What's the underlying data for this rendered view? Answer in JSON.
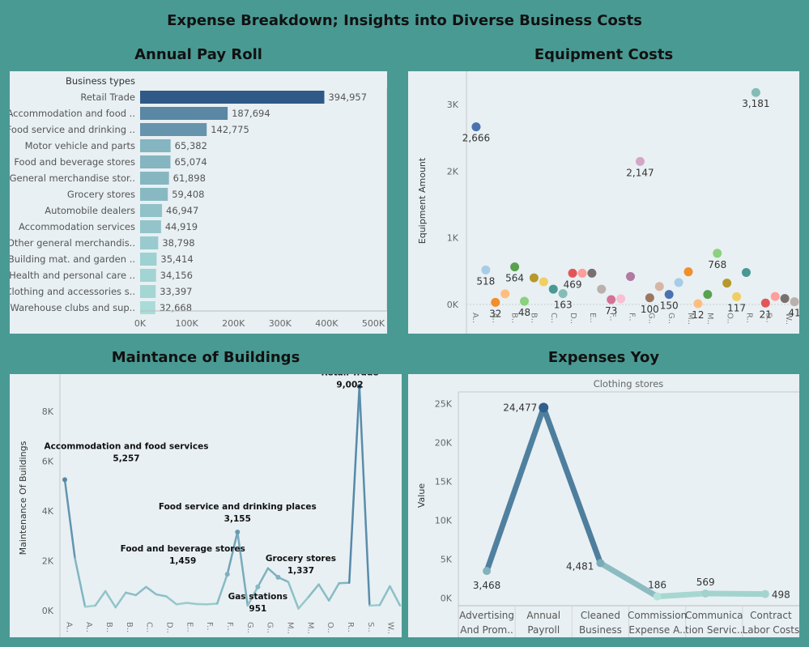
{
  "dashboard": {
    "title": "Expense Breakdown; Insights into Diverse Business Costs"
  },
  "chart_data": [
    {
      "id": "payroll",
      "type": "bar",
      "title": "Annual Pay Roll",
      "category_header": "Business types",
      "categories": [
        "Retail Trade",
        "Accommodation and food ..",
        "Food service and drinking ..",
        "Motor vehicle and parts",
        "Food and beverage stores",
        "General merchandise stor..",
        "Grocery stores",
        "Automobile dealers",
        "Accommodation services",
        "Other general merchandis..",
        "Building mat. and garden ..",
        "Health and personal care ..",
        "Clothing and accessories s..",
        "Warehouse clubs and sup.."
      ],
      "values": [
        394957,
        187694,
        142775,
        65382,
        65074,
        61898,
        59408,
        46947,
        44919,
        38798,
        35414,
        34156,
        33397,
        32668
      ],
      "value_labels": [
        "394,957",
        "187,694",
        "142,775",
        "65,382",
        "65,074",
        "61,898",
        "59,408",
        "46,947",
        "44,919",
        "38,798",
        "35,414",
        "34,156",
        "33,397",
        "32,668"
      ],
      "xlim": [
        0,
        500000
      ],
      "xticks": [
        "0K",
        "100K",
        "200K",
        "300K",
        "400K",
        "500K"
      ],
      "colors": {
        "dark": "#2f5a88",
        "light": "#a9dcd8"
      }
    },
    {
      "id": "equipment",
      "type": "scatter",
      "title": "Equipment Costs",
      "ylabel": "Equipment Amount",
      "ylim": [
        0,
        3500
      ],
      "yticks": [
        "0K",
        "1K",
        "2K",
        "3K"
      ],
      "x_labels": [
        "A..",
        "A..",
        "B..",
        "B..",
        "C..",
        "D..",
        "E..",
        "F..",
        "F..",
        "G..",
        "G..",
        "M..",
        "M..",
        "O..",
        "R..",
        "S..",
        "W.."
      ],
      "points": [
        {
          "v": 2666,
          "c": "#4a72b0",
          "label": "2,666"
        },
        {
          "v": 518,
          "c": "#a8cce8",
          "label": "518"
        },
        {
          "v": 32,
          "c": "#f28e2b",
          "label": "32"
        },
        {
          "v": 160,
          "c": "#ffbe7d",
          "label": ""
        },
        {
          "v": 564,
          "c": "#59a14f",
          "label": "564"
        },
        {
          "v": 48,
          "c": "#8cd17d",
          "label": "48"
        },
        {
          "v": 400,
          "c": "#b6992d",
          "label": ""
        },
        {
          "v": 340,
          "c": "#f1ce63",
          "label": ""
        },
        {
          "v": 230,
          "c": "#499894",
          "label": ""
        },
        {
          "v": 163,
          "c": "#86bcb6",
          "label": "163"
        },
        {
          "v": 469,
          "c": "#e15759",
          "label": "469"
        },
        {
          "v": 469,
          "c": "#ff9d9a",
          "label": ""
        },
        {
          "v": 469,
          "c": "#79706e",
          "label": ""
        },
        {
          "v": 230,
          "c": "#bab0ac",
          "label": ""
        },
        {
          "v": 73,
          "c": "#d37295",
          "label": "73"
        },
        {
          "v": 85,
          "c": "#fabfd2",
          "label": ""
        },
        {
          "v": 420,
          "c": "#b07aa1",
          "label": ""
        },
        {
          "v": 2147,
          "c": "#d4a6c8",
          "label": "2,147"
        },
        {
          "v": 100,
          "c": "#9d7660",
          "label": "100"
        },
        {
          "v": 270,
          "c": "#d7b5a6",
          "label": ""
        },
        {
          "v": 150,
          "c": "#4a72b0",
          "label": "150"
        },
        {
          "v": 330,
          "c": "#a8cce8",
          "label": ""
        },
        {
          "v": 490,
          "c": "#f28e2b",
          "label": ""
        },
        {
          "v": 12,
          "c": "#ffbe7d",
          "label": "12"
        },
        {
          "v": 150,
          "c": "#59a14f",
          "label": ""
        },
        {
          "v": 768,
          "c": "#8cd17d",
          "label": "768"
        },
        {
          "v": 320,
          "c": "#b6992d",
          "label": ""
        },
        {
          "v": 117,
          "c": "#f1ce63",
          "label": "117"
        },
        {
          "v": 480,
          "c": "#499894",
          "label": ""
        },
        {
          "v": 3181,
          "c": "#86bcb6",
          "label": "3,181"
        },
        {
          "v": 21,
          "c": "#e15759",
          "label": "21"
        },
        {
          "v": 120,
          "c": "#ff9d9a",
          "label": ""
        },
        {
          "v": 90,
          "c": "#79706e",
          "label": ""
        },
        {
          "v": 41,
          "c": "#bab0ac",
          "label": "41"
        }
      ]
    },
    {
      "id": "maintenance",
      "type": "line",
      "title": "Maintance of Buildings",
      "ylabel": "Maintenance Of Buildings",
      "ylim": [
        0,
        9500
      ],
      "yticks": [
        "0K",
        "2K",
        "4K",
        "6K",
        "8K"
      ],
      "x_labels": [
        "A..",
        "A..",
        "B..",
        "B..",
        "C..",
        "D..",
        "E..",
        "F..",
        "F..",
        "G..",
        "G..",
        "M..",
        "M..",
        "O..",
        "R..",
        "S..",
        "W.."
      ],
      "values": [
        5257,
        2100,
        150,
        200,
        780,
        130,
        720,
        620,
        950,
        650,
        570,
        250,
        310,
        260,
        250,
        280,
        1459,
        3155,
        200,
        951,
        1700,
        1337,
        1150,
        80,
        550,
        1050,
        400,
        1100,
        1120,
        9002,
        200,
        220,
        980,
        200
      ],
      "annotations": [
        {
          "i": 0,
          "name": "Accommodation and food services",
          "value": "5,257"
        },
        {
          "i": 16,
          "name": "Food and beverage stores",
          "value": "1,459"
        },
        {
          "i": 17,
          "name": "Food service and drinking places",
          "value": "3,155"
        },
        {
          "i": 19,
          "name": "Gas stations",
          "value": "951"
        },
        {
          "i": 21,
          "name": "Grocery stores",
          "value": "1,337"
        },
        {
          "i": 29,
          "name": "Retail Trade",
          "value": "9,002"
        }
      ]
    },
    {
      "id": "yoy",
      "type": "line",
      "title": "Expenses Yoy",
      "ylabel": "Value",
      "facet_label": "Clothing stores",
      "ylim": [
        -1000,
        26500
      ],
      "yticks": [
        "0K",
        "5K",
        "10K",
        "15K",
        "20K",
        "25K"
      ],
      "categories": [
        [
          "Advertising",
          "And Prom.."
        ],
        [
          "Annual",
          "Payroll"
        ],
        [
          "Cleaned",
          "Business"
        ],
        [
          "Commission",
          "Expense A.."
        ],
        [
          "Communica",
          "tion Servic.."
        ],
        [
          "Contract",
          "Labor Costs"
        ]
      ],
      "points": [
        {
          "x": 0.5,
          "v": 3468,
          "label": "3,468"
        },
        {
          "x": 1.5,
          "v": 24477,
          "label": "24,477"
        },
        {
          "x": 2.5,
          "v": 4481,
          "label": "4,481"
        },
        {
          "x": 3.5,
          "v": 186,
          "label": "186"
        },
        {
          "x": 4.35,
          "v": 569,
          "label": "569"
        },
        {
          "x": 5.4,
          "v": 498,
          "label": "498"
        }
      ]
    }
  ]
}
